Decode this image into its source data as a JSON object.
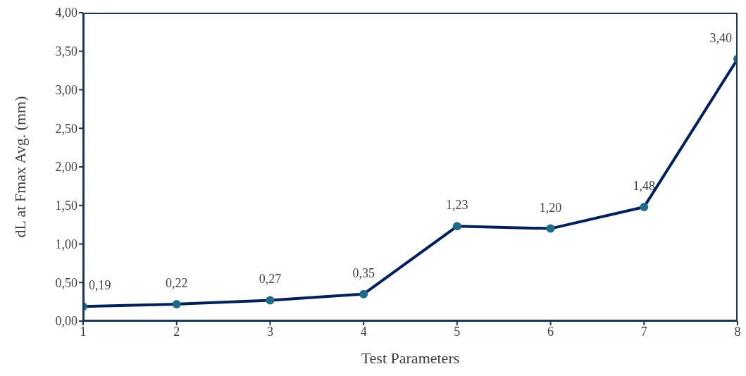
{
  "chart_data": {
    "type": "line",
    "xlabel": "Test Parameters",
    "ylabel": "dL at Fmax Avg. (mm)",
    "categories": [
      "1",
      "2",
      "3",
      "4",
      "5",
      "6",
      "7",
      "8"
    ],
    "series": [
      {
        "color": "#002060",
        "colors": [
          "#1f6b8c",
          "#1f6b8c",
          "#1f6b8c",
          "#1f6b8c",
          "#1f6b8c",
          "#1f6b8c",
          "#1f6b8c",
          "#1f6b8c"
        ],
        "values": [
          0.19,
          0.22,
          0.27,
          0.35,
          1.23,
          1.2,
          1.48,
          3.4
        ],
        "value_labels": [
          "0,19",
          "0,22",
          "0,27",
          "0,35",
          "1,23",
          "1,20",
          "1,48",
          "3,40"
        ]
      }
    ],
    "ylim": [
      0,
      4
    ],
    "yticks": [
      {
        "value": 0,
        "label": "0,00"
      },
      {
        "value": 0.5,
        "label": "0,50"
      },
      {
        "value": 1,
        "label": "1,00"
      },
      {
        "value": 1.5,
        "label": "1,50"
      },
      {
        "value": 2,
        "label": "2,00"
      },
      {
        "value": 2.5,
        "label": "2,50"
      },
      {
        "value": 3,
        "label": "3,00"
      },
      {
        "value": 3.5,
        "label": "3,50"
      },
      {
        "value": 4,
        "label": "4,00"
      }
    ],
    "marker": "circle",
    "line_style": "solid",
    "grid": false,
    "legend": false
  }
}
